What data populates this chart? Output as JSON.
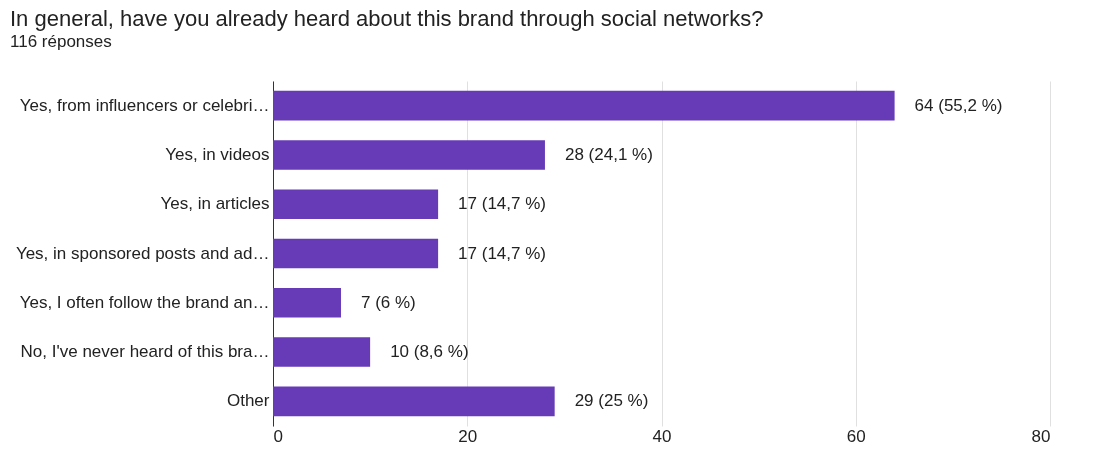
{
  "chart_data": {
    "type": "bar",
    "orientation": "horizontal",
    "title": "In general, have you already heard about this brand through social networks?",
    "subtitle": "116 réponses",
    "categories": [
      "Yes, from influencers or celebri…",
      "Yes, in videos",
      "Yes, in articles",
      "Yes, in sponsored posts and ad…",
      "Yes, I often follow the brand an…",
      "No, I've never heard of this bra…",
      "Other"
    ],
    "values": [
      64,
      28,
      17,
      17,
      7,
      10,
      29
    ],
    "value_labels": [
      "64 (55,2 %)",
      "28 (24,1 %)",
      "17 (14,7 %)",
      "17 (14,7 %)",
      "7 (6 %)",
      "10 (8,6 %)",
      "29 (25 %)"
    ],
    "color": "#673ab7",
    "xlim": [
      0,
      80
    ],
    "xticks": [
      0,
      20,
      40,
      60,
      80
    ],
    "grid": "x"
  }
}
